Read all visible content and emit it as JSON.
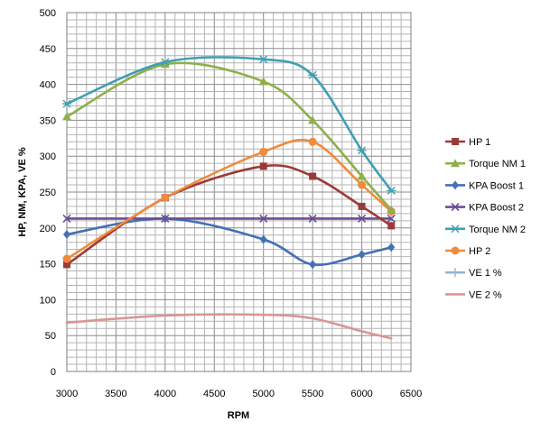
{
  "chart_data": {
    "type": "line",
    "xlabel": "RPM",
    "ylabel": "HP, NM, KPA, VE %",
    "xlim": [
      3000,
      6500
    ],
    "ylim": [
      0,
      500
    ],
    "x_ticks": [
      "3000",
      "3500",
      "4000",
      "4500",
      "5000",
      "5500",
      "6000",
      "6500"
    ],
    "y_ticks": [
      "0",
      "50",
      "100",
      "150",
      "200",
      "250",
      "300",
      "350",
      "400",
      "450",
      "500"
    ],
    "grid": true,
    "legend_position": "right",
    "series": [
      {
        "name": "HP 1",
        "color": "#9b3b39",
        "marker": "square",
        "x": [
          3000,
          4000,
          5000,
          5500,
          6000,
          6300
        ],
        "y": [
          149,
          242,
          286,
          272,
          230,
          203
        ]
      },
      {
        "name": "Torque NM 1",
        "color": "#8eb04a",
        "marker": "triangle",
        "x": [
          3000,
          4000,
          5000,
          5500,
          6000,
          6300
        ],
        "y": [
          355,
          428,
          404,
          350,
          272,
          225
        ]
      },
      {
        "name": "KPA Boost 1",
        "color": "#4470b5",
        "marker": "diamond",
        "x": [
          3000,
          4000,
          5000,
          5500,
          6000,
          6300
        ],
        "y": [
          191,
          213,
          184,
          149,
          163,
          173
        ]
      },
      {
        "name": "KPA Boost 2",
        "color": "#6e4b96",
        "marker": "x",
        "x": [
          3000,
          4000,
          5000,
          5500,
          6000,
          6300
        ],
        "y": [
          213,
          213,
          213,
          213,
          213,
          213
        ]
      },
      {
        "name": "Torque NM 2",
        "color": "#3f9fb4",
        "marker": "asterisk",
        "x": [
          3000,
          4000,
          5000,
          5500,
          6000,
          6300
        ],
        "y": [
          373,
          431,
          435,
          413,
          308,
          252
        ]
      },
      {
        "name": "HP 2",
        "color": "#f08b3c",
        "marker": "circle",
        "x": [
          3000,
          4000,
          5000,
          5500,
          6000,
          6300
        ],
        "y": [
          157,
          242,
          306,
          320,
          260,
          223
        ]
      },
      {
        "name": "VE 1 %",
        "color": "#93b4d8",
        "marker": "plus",
        "x": [],
        "y": []
      },
      {
        "name": "VE 2 %",
        "color": "#d99694",
        "marker": "none",
        "x": [
          3000,
          4000,
          5000,
          5500,
          6000,
          6300
        ],
        "y": [
          68,
          78,
          79,
          74,
          56,
          46
        ]
      }
    ]
  }
}
